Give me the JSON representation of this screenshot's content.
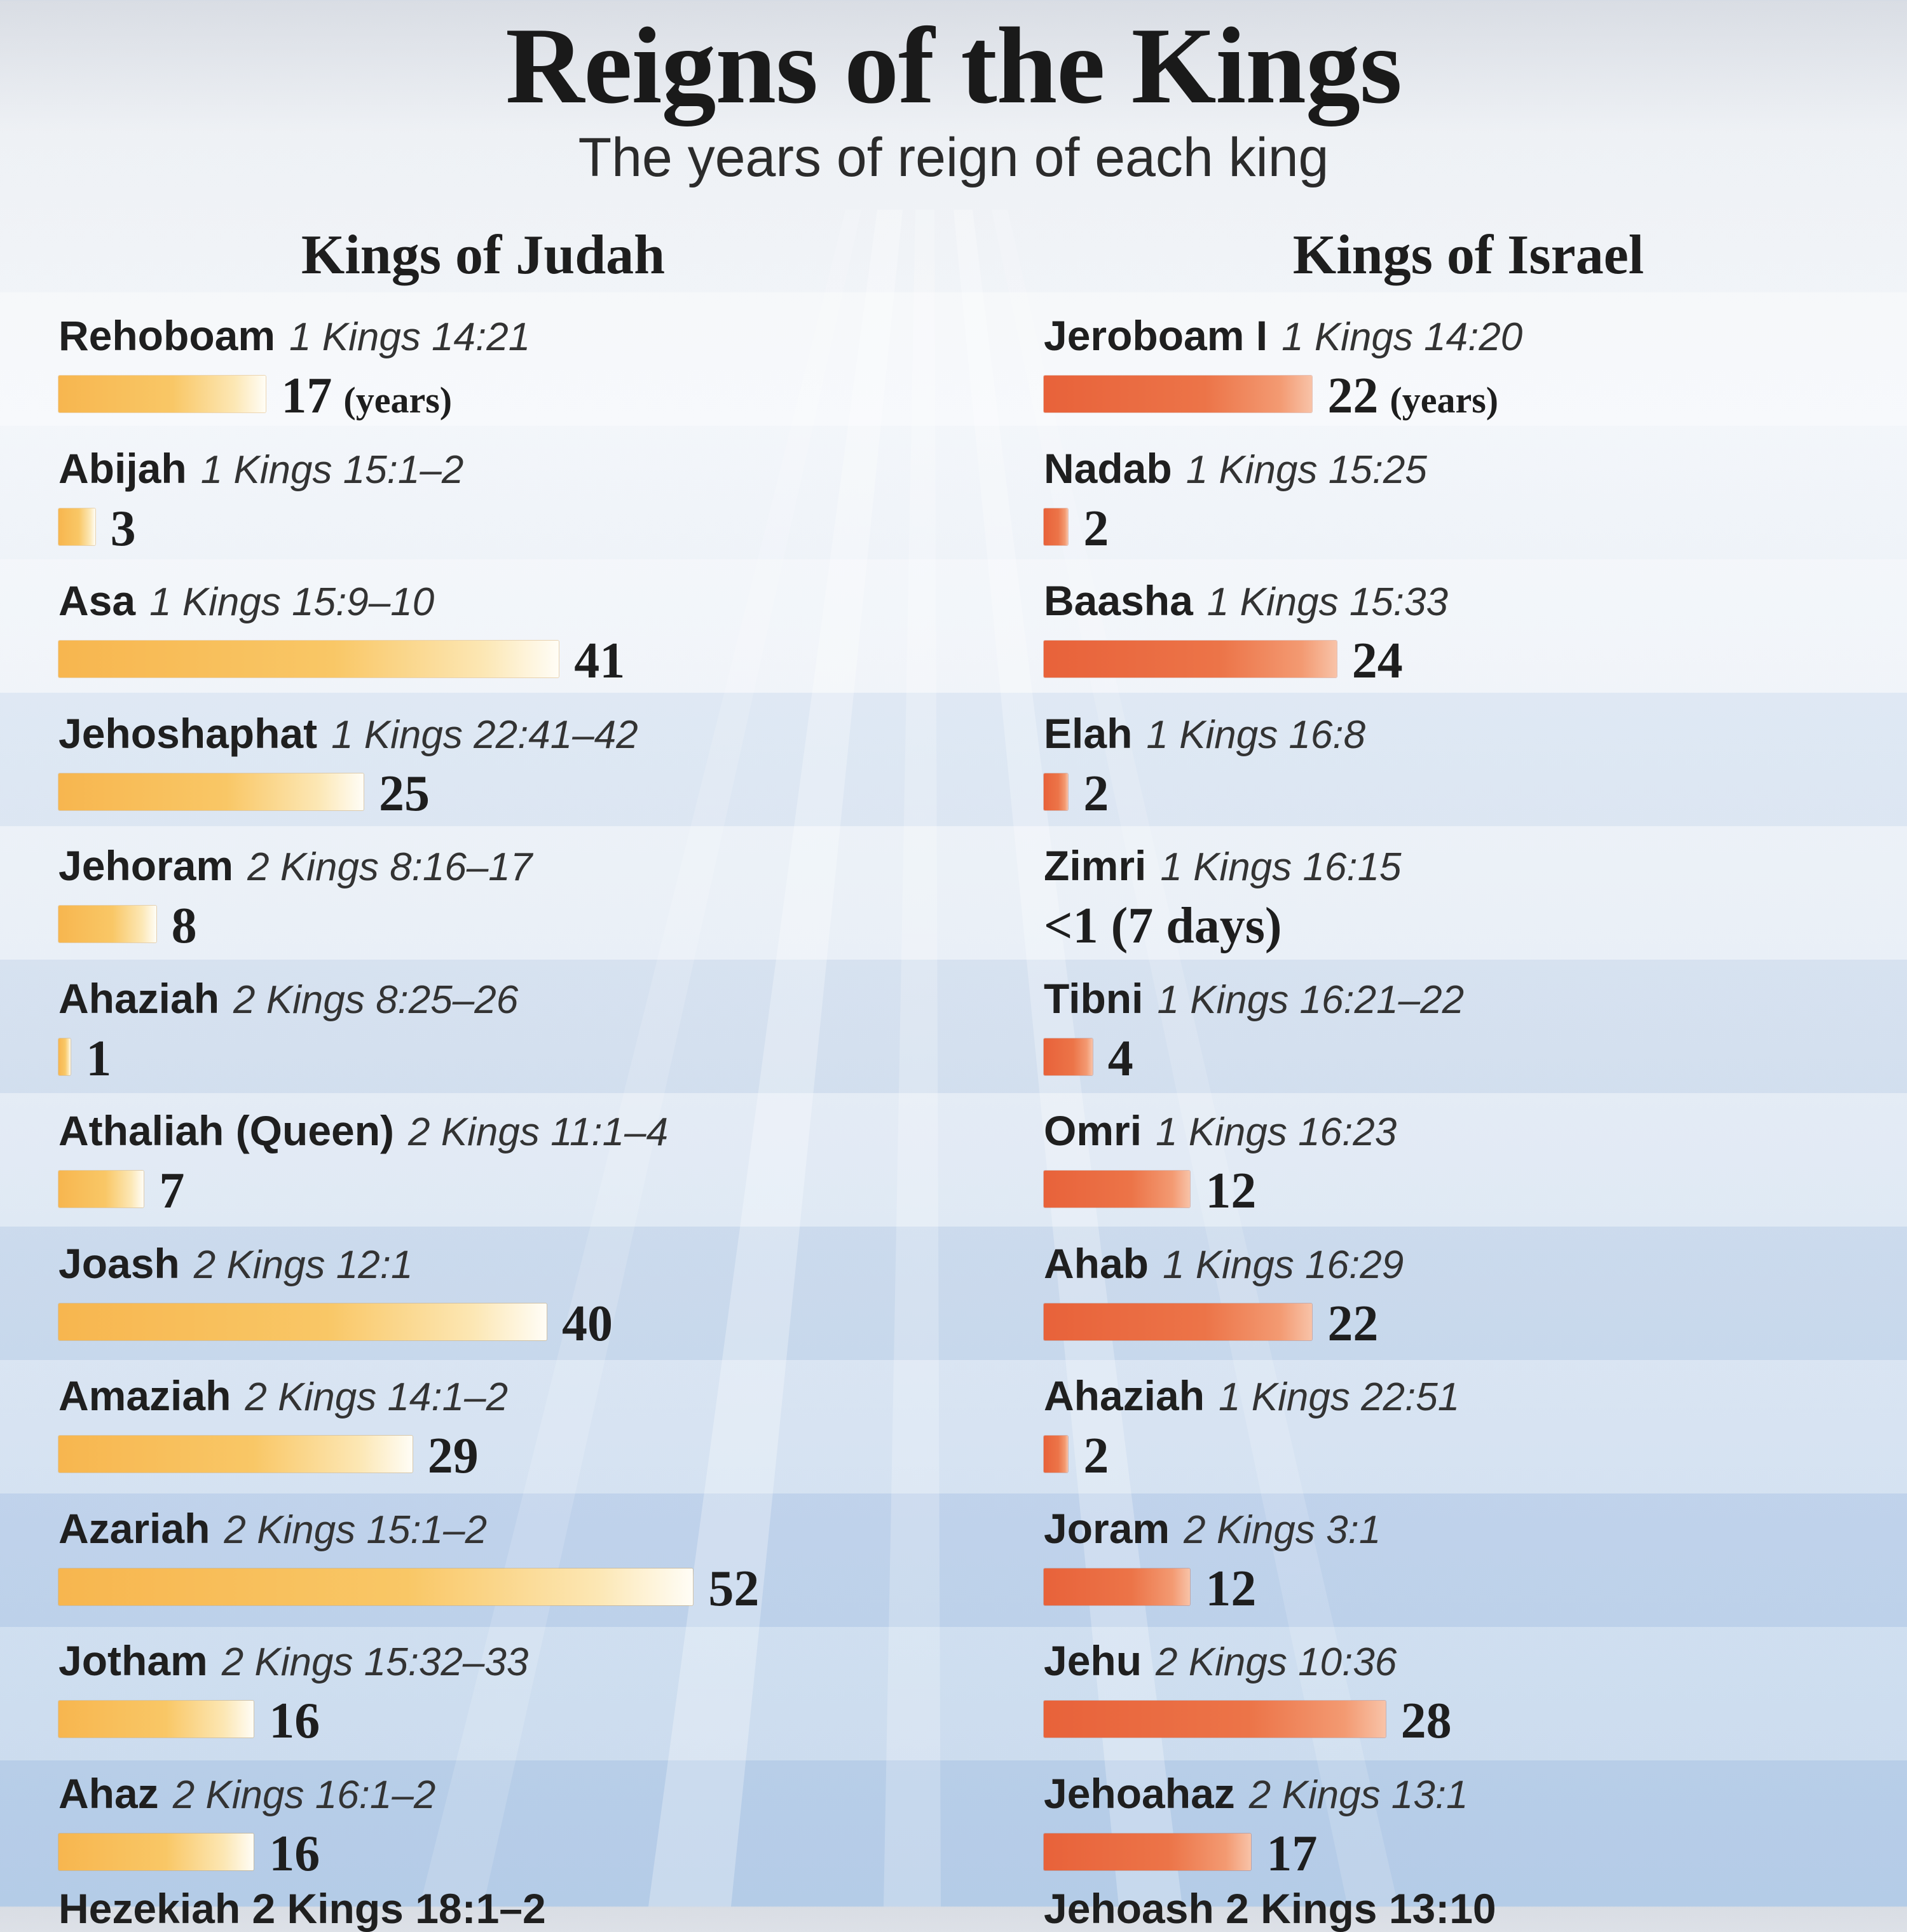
{
  "title": "Reigns of the Kings",
  "subtitle": "The years of reign of each king",
  "chart_data": [
    {
      "type": "bar",
      "title": "Kings of Judah",
      "unit_label": "(years)",
      "color": "#f7b64f",
      "series": [
        {
          "name": "Rehoboam",
          "ref": "1 Kings 14:21",
          "value": 17,
          "label": "17"
        },
        {
          "name": "Abijah",
          "ref": "1 Kings 15:1–2",
          "value": 3,
          "label": "3"
        },
        {
          "name": "Asa",
          "ref": "1 Kings 15:9–10",
          "value": 41,
          "label": "41"
        },
        {
          "name": "Jehoshaphat",
          "ref": "1 Kings 22:41–42",
          "value": 25,
          "label": "25"
        },
        {
          "name": "Jehoram",
          "ref": "2 Kings 8:16–17",
          "value": 8,
          "label": "8"
        },
        {
          "name": "Ahaziah",
          "ref": "2 Kings 8:25–26",
          "value": 1,
          "label": "1"
        },
        {
          "name": "Athaliah (Queen)",
          "ref": "2 Kings 11:1–4",
          "value": 7,
          "label": "7"
        },
        {
          "name": "Joash",
          "ref": "2 Kings 12:1",
          "value": 40,
          "label": "40"
        },
        {
          "name": "Amaziah",
          "ref": "2 Kings 14:1–2",
          "value": 29,
          "label": "29"
        },
        {
          "name": "Azariah",
          "ref": "2 Kings 15:1–2",
          "value": 52,
          "label": "52"
        },
        {
          "name": "Jotham",
          "ref": "2 Kings 15:32–33",
          "value": 16,
          "label": "16"
        },
        {
          "name": "Ahaz",
          "ref": "2 Kings 16:1–2",
          "value": 16,
          "label": "16"
        }
      ],
      "cut_off_text": "Hezekiah 2 Kings 18:1–2"
    },
    {
      "type": "bar",
      "title": "Kings of Israel",
      "unit_label": "(years)",
      "color": "#e8623a",
      "series": [
        {
          "name": "Jeroboam I",
          "ref": "1 Kings 14:20",
          "value": 22,
          "label": "22"
        },
        {
          "name": "Nadab",
          "ref": "1 Kings 15:25",
          "value": 2,
          "label": "2"
        },
        {
          "name": "Baasha",
          "ref": "1 Kings 15:33",
          "value": 24,
          "label": "24"
        },
        {
          "name": "Elah",
          "ref": "1 Kings 16:8",
          "value": 2,
          "label": "2"
        },
        {
          "name": "Zimri",
          "ref": "1 Kings 16:15",
          "value": 0,
          "label": "<1 (7 days)"
        },
        {
          "name": "Tibni",
          "ref": "1 Kings 16:21–22",
          "value": 4,
          "label": "4"
        },
        {
          "name": "Omri",
          "ref": "1 Kings 16:23",
          "value": 12,
          "label": "12"
        },
        {
          "name": "Ahab",
          "ref": "1 Kings 16:29",
          "value": 22,
          "label": "22"
        },
        {
          "name": "Ahaziah",
          "ref": "1 Kings 22:51",
          "value": 2,
          "label": "2"
        },
        {
          "name": "Joram",
          "ref": "2 Kings 3:1",
          "value": 12,
          "label": "12"
        },
        {
          "name": "Jehu",
          "ref": "2 Kings 10:36",
          "value": 28,
          "label": "28"
        },
        {
          "name": "Jehoahaz",
          "ref": "2 Kings 13:1",
          "value": 17,
          "label": "17"
        }
      ],
      "cut_off_text": "Jehoash 2 Kings 13:10"
    }
  ]
}
